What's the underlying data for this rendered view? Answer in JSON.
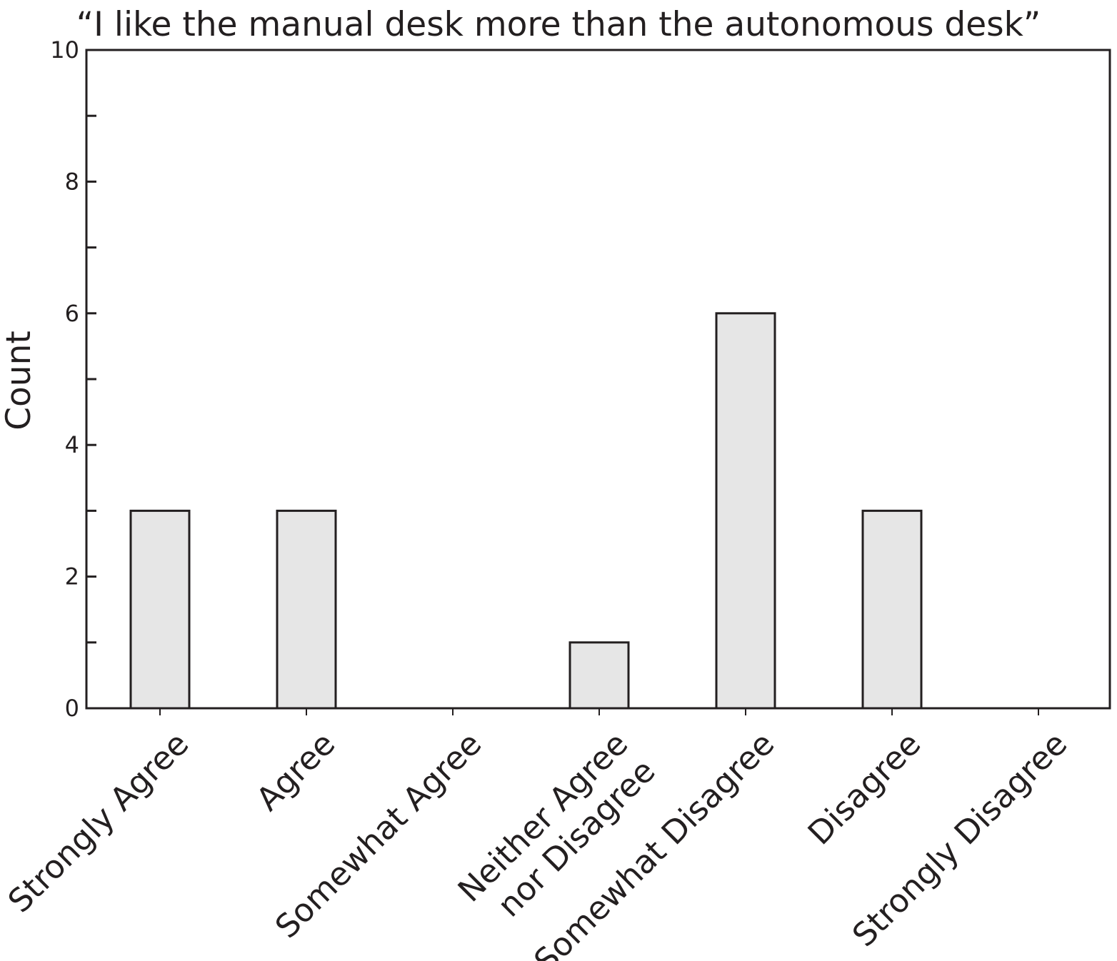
{
  "chart_data": {
    "type": "bar",
    "title": "“I like the manual desk more than the autonomous desk”",
    "xlabel": "",
    "ylabel": "Count",
    "categories": [
      [
        "Strongly Agree"
      ],
      [
        "Agree"
      ],
      [
        "Somewhat Agree"
      ],
      [
        "Neither Agree",
        "nor Disagree"
      ],
      [
        "Somewhat Disagree"
      ],
      [
        "Disagree"
      ],
      [
        "Strongly Disagree"
      ]
    ],
    "values": [
      3,
      3,
      0,
      1,
      6,
      3,
      0
    ],
    "ylim": [
      0,
      10
    ],
    "yticks": [
      "0",
      "2",
      "4",
      "6",
      "8",
      "10"
    ],
    "grid": false,
    "colors": {
      "bar_fill": "#e6e6e6",
      "bar_stroke": "#231f20",
      "axis": "#231f20",
      "text": "#231f20"
    }
  }
}
